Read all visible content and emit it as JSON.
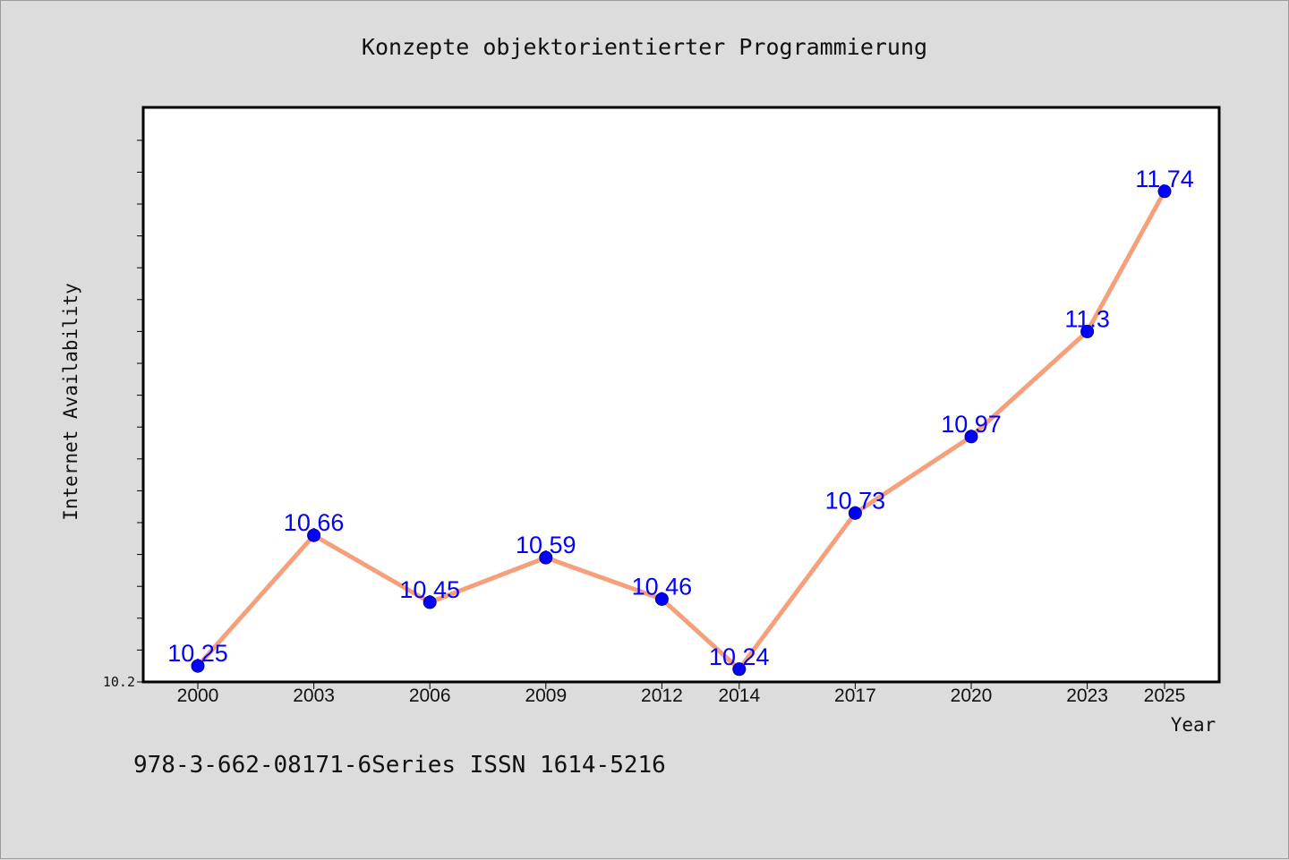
{
  "chart_data": {
    "type": "line",
    "title": "Konzepte objektorientierter Programmierung",
    "xlabel": "Year",
    "ylabel": "Internet Availability",
    "categories": [
      "2000",
      "2003",
      "2006",
      "2009",
      "2012",
      "2014",
      "2017",
      "2020",
      "2023",
      "2025"
    ],
    "values": [
      10.25,
      10.66,
      10.45,
      10.59,
      10.46,
      10.24,
      10.73,
      10.97,
      11.3,
      11.74
    ],
    "data_labels": [
      "10.25",
      "10.66",
      "10.45",
      "10.59",
      "10.46",
      "10.24",
      "10.73",
      "10.97",
      "11.3",
      "11.74"
    ],
    "ytick_labels": [
      "10.2"
    ],
    "ylim": [
      10.2,
      12.0
    ],
    "grid": false,
    "legend": "none",
    "line_color": "#f5a07a",
    "marker_color": "#0000ff",
    "label_color": "#0000ff"
  },
  "caption": "978-3-662-08171-6Series ISSN 1614-5216"
}
